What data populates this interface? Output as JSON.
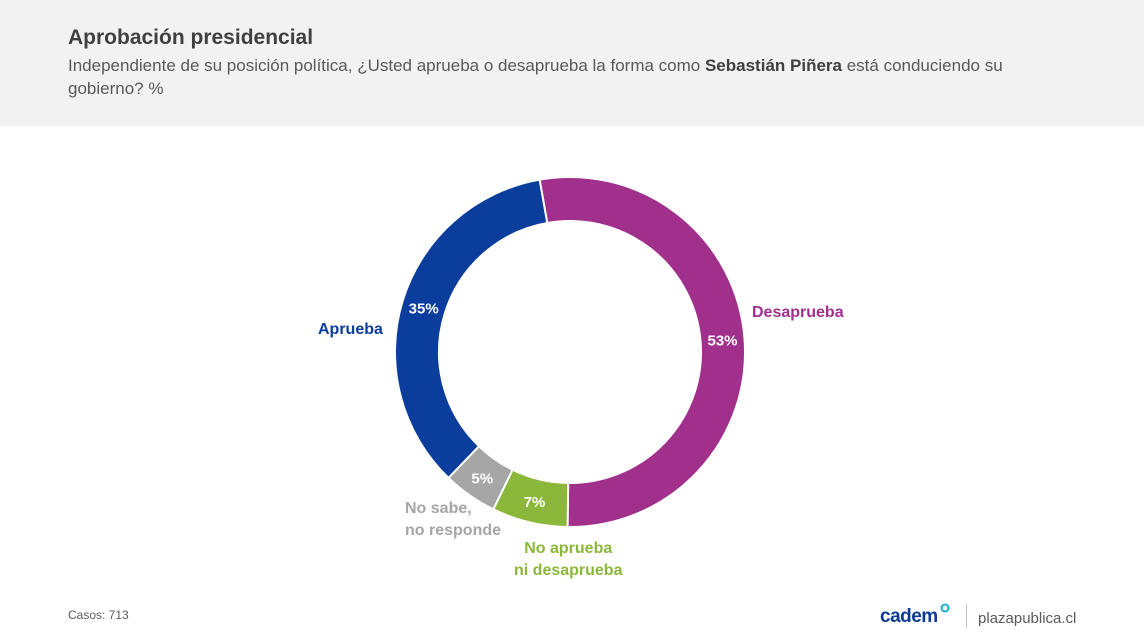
{
  "header": {
    "title": "Aprobación presidencial",
    "question_before": "Independiente de su posición política, ¿Usted aprueba o desaprueba la forma como ",
    "question_bold": "Sebastián Piñera",
    "question_after": " está conduciendo su gobierno? %"
  },
  "chart_data": {
    "type": "pie",
    "variant": "donut",
    "title": "Aprobación presidencial",
    "unit": "%",
    "slices": [
      {
        "name": "Desaprueba",
        "value": 53,
        "value_label": "53%",
        "color": "#a0308c",
        "label_color": "#a0308c"
      },
      {
        "name": "No aprueba\nni desaprueba",
        "value": 7,
        "value_label": "7%",
        "color": "#8bb83a",
        "label_color": "#8bb83a"
      },
      {
        "name": "No sabe,\nno responde",
        "value": 5,
        "value_label": "5%",
        "color": "#a6a6a6",
        "label_color": "#a6a6a6"
      },
      {
        "name": "Aprueba",
        "value": 35,
        "value_label": "35%",
        "color": "#0b3d9c",
        "label_color": "#0b3d9c"
      }
    ]
  },
  "footer": {
    "cases": "Casos: 713",
    "brand": "cadem",
    "site": "plazapublica.cl"
  }
}
